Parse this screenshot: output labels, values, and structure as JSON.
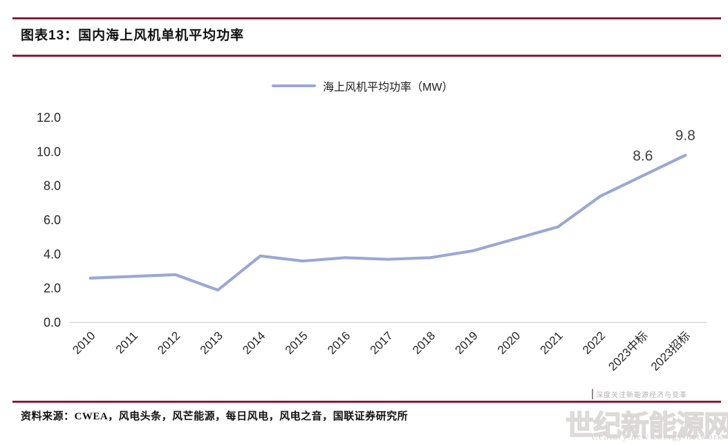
{
  "header": {
    "title": "图表13：国内海上风机单机平均功率"
  },
  "legend": {
    "label": "海上风机平均功率（MW）"
  },
  "chart_data": {
    "type": "line",
    "title": "国内海上风机单机平均功率",
    "legend_entries": [
      "海上风机平均功率（MW）"
    ],
    "legend_position": "top-center",
    "grid": false,
    "categories": [
      "2010",
      "2011",
      "2012",
      "2013",
      "2014",
      "2015",
      "2016",
      "2017",
      "2018",
      "2019",
      "2020",
      "2021",
      "2022",
      "2023中标",
      "2023招标"
    ],
    "values": [
      2.6,
      2.7,
      2.8,
      1.9,
      3.9,
      3.6,
      3.8,
      3.7,
      3.8,
      4.2,
      4.9,
      5.6,
      7.4,
      8.6,
      9.8
    ],
    "ylim": [
      0,
      12
    ],
    "ytick_step": 2,
    "ytick_labels": [
      "0.0",
      "2.0",
      "4.0",
      "6.0",
      "8.0",
      "10.0",
      "12.0"
    ],
    "point_labels": [
      {
        "index": 13,
        "text": "8.6"
      },
      {
        "index": 14,
        "text": "9.8"
      }
    ]
  },
  "footer": {
    "source": "资料来源：CWEA，风电头条，风芒能源，每日风电，风电之音，国联证券研究所"
  },
  "watermark": {
    "slogan": "深度关注新能源经济与变革",
    "brand": "世纪新能源网",
    "brand_sub": "Century new energy network"
  },
  "colors": {
    "accent_red": "#8C1A37",
    "series_line": "#9AA8D4",
    "axis_line": "#D9D9D9",
    "tick_label": "#262626",
    "data_label": "#3f3f3f"
  }
}
